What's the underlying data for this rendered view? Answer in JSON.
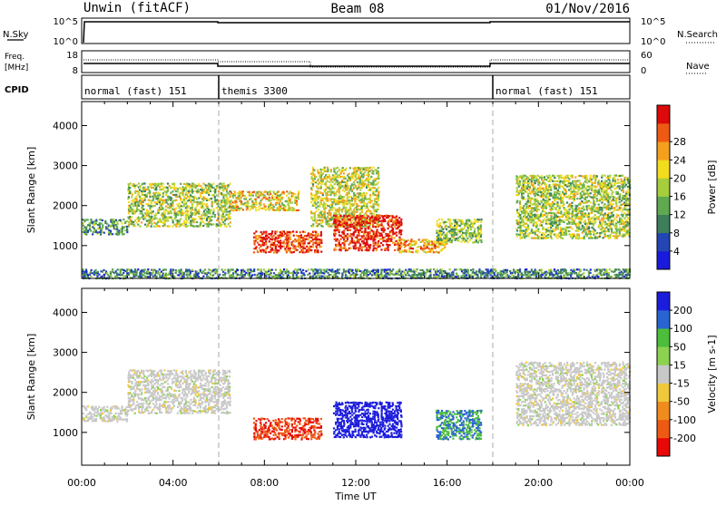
{
  "header": {
    "title_left": "Unwin (fitACF)",
    "title_center": "Beam 08",
    "title_right": "01/Nov/2016"
  },
  "strips": {
    "nsky_label": "N.Sky",
    "nsky_ticks": [
      "10^5",
      "10^0"
    ],
    "nsearch_label": "N.Search",
    "freq_label_line1": "Freq.",
    "freq_label_line2": "[MHz]",
    "freq_ticks": [
      "18",
      "8"
    ],
    "nave_label": "Nave",
    "nave_ticks": [
      "60",
      "0"
    ],
    "cpid_label": "CPID",
    "cpid_segments": [
      {
        "label": "normal (fast) 151",
        "start_hour": 0
      },
      {
        "label": "themis 3300",
        "start_hour": 6
      },
      {
        "label": "normal (fast) 151",
        "start_hour": 18
      }
    ]
  },
  "x_axis": {
    "label": "Time UT",
    "ticks": [
      "00:00",
      "04:00",
      "08:00",
      "12:00",
      "16:00",
      "20:00",
      "00:00"
    ]
  },
  "chart_data": [
    {
      "type": "heatmap",
      "panel": "power",
      "ylabel": "Slant Range [km]",
      "xlabel": "Time UT",
      "xlim_hours": [
        0,
        24
      ],
      "ylim": [
        180,
        4600
      ],
      "yticks": [
        "1000",
        "2000",
        "3000",
        "4000"
      ],
      "colorbar_label": "Power [dB]",
      "colorbar_ticks": [
        "4",
        "8",
        "12",
        "16",
        "20",
        "24",
        "28"
      ],
      "colorbar_colors": [
        "#1a1adc",
        "#2446b4",
        "#3c7f5a",
        "#5faa50",
        "#a6cd3c",
        "#f2dc1e",
        "#f4a01c",
        "#ee5a14",
        "#dc0a0a"
      ],
      "regions": [
        {
          "t": [
            0.0,
            2.0
          ],
          "range": [
            1300,
            1700
          ],
          "level": 0.35
        },
        {
          "t": [
            2.0,
            6.5
          ],
          "range": [
            1500,
            2600
          ],
          "level": 0.5
        },
        {
          "t": [
            6.5,
            9.5
          ],
          "range": [
            1900,
            2400
          ],
          "level": 0.6
        },
        {
          "t": [
            7.5,
            10.5
          ],
          "range": [
            850,
            1400
          ],
          "level": 0.9
        },
        {
          "t": [
            10.0,
            13.0
          ],
          "range": [
            1500,
            3000
          ],
          "level": 0.55
        },
        {
          "t": [
            11.0,
            14.0
          ],
          "range": [
            900,
            1800
          ],
          "level": 0.95
        },
        {
          "t": [
            13.8,
            16.0
          ],
          "range": [
            850,
            1200
          ],
          "level": 0.7
        },
        {
          "t": [
            15.5,
            17.5
          ],
          "range": [
            1100,
            1700
          ],
          "level": 0.45
        },
        {
          "t": [
            19.0,
            24.0
          ],
          "range": [
            1200,
            2800
          ],
          "level": 0.5
        },
        {
          "t": [
            0.0,
            24.0
          ],
          "range": [
            200,
            450
          ],
          "level": 0.3
        }
      ]
    },
    {
      "type": "heatmap",
      "panel": "velocity",
      "ylabel": "Slant Range [km]",
      "xlabel": "Time UT",
      "xlim_hours": [
        0,
        24
      ],
      "ylim": [
        180,
        4600
      ],
      "yticks": [
        "1000",
        "2000",
        "3000",
        "4000"
      ],
      "colorbar_label": "Velocity [m s-1]",
      "colorbar_ticks": [
        "200",
        "100",
        "50",
        "15",
        "-15",
        "-50",
        "-100",
        "-200"
      ],
      "colorbar_colors": [
        "#1c1cdc",
        "#2864d2",
        "#4cbe3c",
        "#8cd250",
        "#c8c8c8",
        "#f0c83c",
        "#f08c1e",
        "#ee5a14",
        "#e80808"
      ],
      "regions": [
        {
          "t": [
            0.0,
            2.0
          ],
          "range": [
            1300,
            1700
          ],
          "velocity": 0
        },
        {
          "t": [
            2.0,
            6.5
          ],
          "range": [
            1500,
            2600
          ],
          "velocity": 0
        },
        {
          "t": [
            7.5,
            10.5
          ],
          "range": [
            850,
            1400
          ],
          "velocity": -200
        },
        {
          "t": [
            11.0,
            14.0
          ],
          "range": [
            900,
            1800
          ],
          "velocity": 200
        },
        {
          "t": [
            15.5,
            17.5
          ],
          "range": [
            850,
            1600
          ],
          "velocity": 50
        },
        {
          "t": [
            19.0,
            24.0
          ],
          "range": [
            1200,
            2800
          ],
          "velocity": 0
        }
      ]
    }
  ]
}
